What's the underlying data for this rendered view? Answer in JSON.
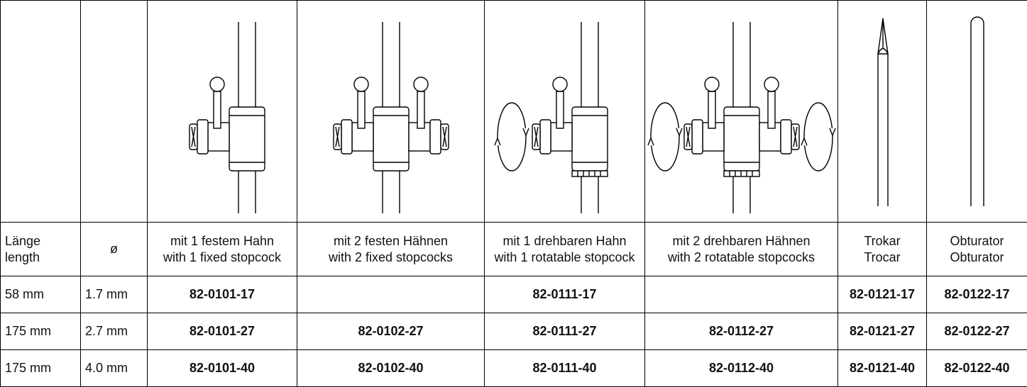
{
  "table": {
    "header": [
      [
        "Länge",
        "length"
      ],
      [
        "ø"
      ],
      [
        "mit 1 festem Hahn",
        "with 1 fixed stopcock"
      ],
      [
        "mit 2 festen Hähnen",
        "with 2 fixed stopcocks"
      ],
      [
        "mit 1 drehbaren Hahn",
        "with 1 rotatable stopcock"
      ],
      [
        "mit 2 drehbaren Hähnen",
        "with 2 rotatable stopcocks"
      ],
      [
        "Trokar",
        "Trocar"
      ],
      [
        "Obturator",
        "Obturator"
      ]
    ],
    "rows": [
      [
        "58 mm",
        "1.7 mm",
        "82-0101-17",
        null,
        "82-0111-17",
        null,
        "82-0121-17",
        "82-0122-17"
      ],
      [
        "175 mm",
        "2.7 mm",
        "82-0101-27",
        "82-0102-27",
        "82-0111-27",
        "82-0112-27",
        "82-0121-27",
        "82-0122-27"
      ],
      [
        "175 mm",
        "4.0 mm",
        "82-0101-40",
        "82-0102-40",
        "82-0111-40",
        "82-0112-40",
        "82-0121-40",
        "82-0122-40"
      ]
    ]
  }
}
